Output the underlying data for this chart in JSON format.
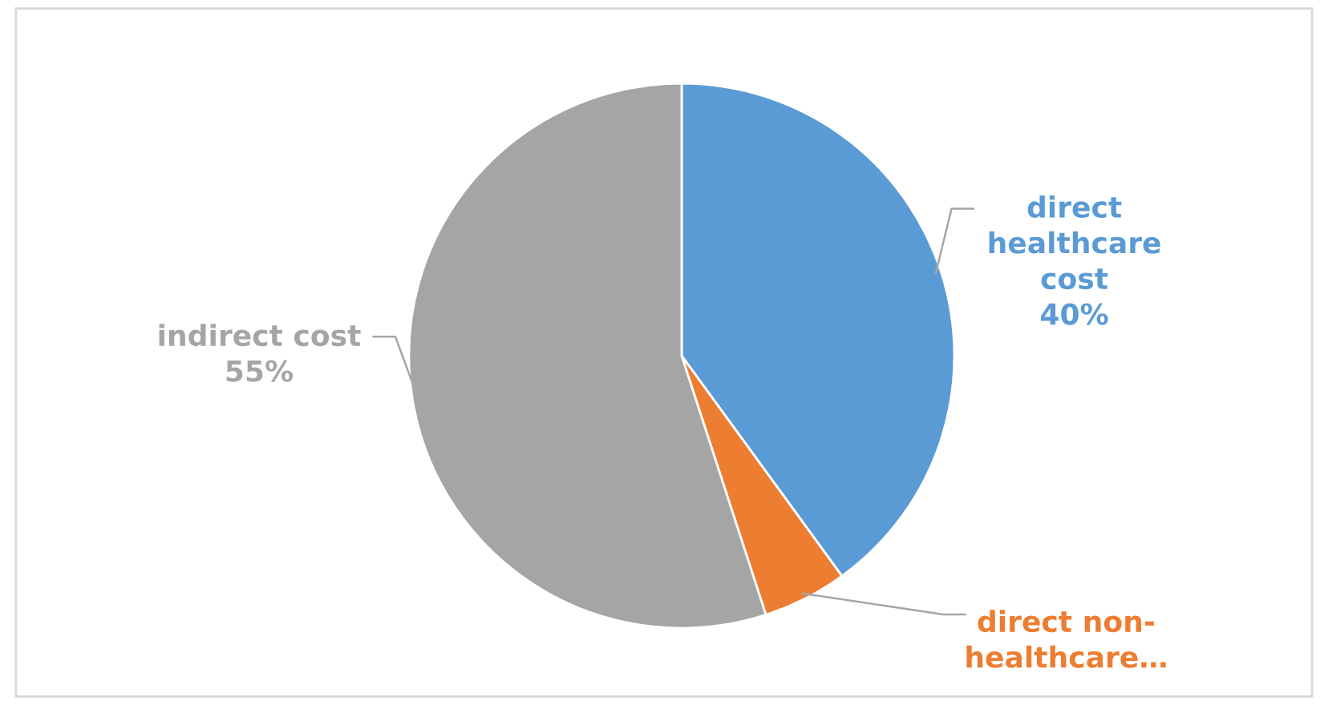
{
  "chart_data": {
    "type": "pie",
    "categories": [
      "direct\nhealthcare\ncost",
      "direct non-\nhealthcare…",
      "indirect cost"
    ],
    "values": [
      40,
      5,
      55
    ],
    "value_labels": [
      "40%",
      null,
      "55%"
    ],
    "colors": [
      "#5b9bd5",
      "#ed7d31",
      "#a5a5a5"
    ]
  }
}
